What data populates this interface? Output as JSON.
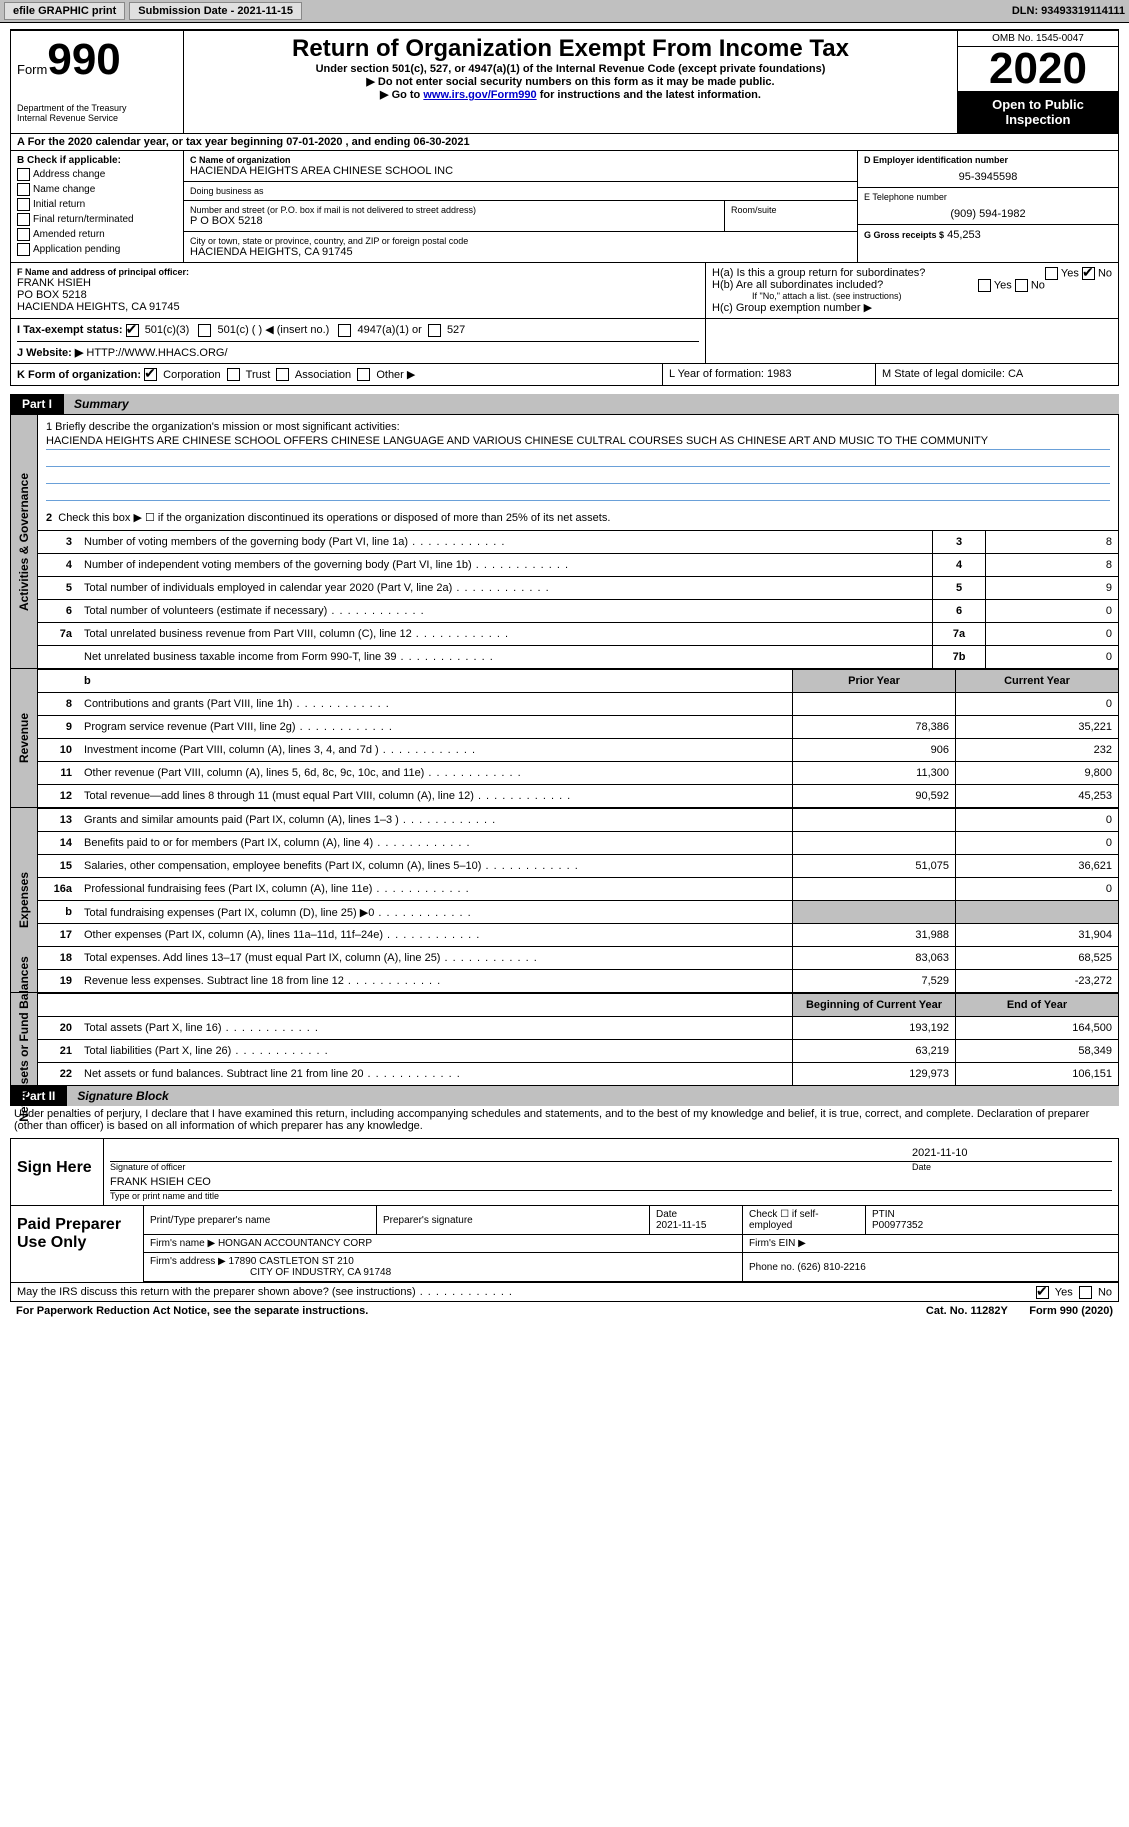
{
  "colors": {
    "header_gray": "#c0c0c0",
    "black": "#000000",
    "link": "#0000cc",
    "mission_line": "#6aa0d8"
  },
  "topbar": {
    "efile": "efile GRAPHIC print",
    "submission": "Submission Date - 2021-11-15",
    "dln": "DLN: 93493319114111"
  },
  "header": {
    "form_word": "Form",
    "form_num": "990",
    "dept1": "Department of the Treasury",
    "dept2": "Internal Revenue Service",
    "title": "Return of Organization Exempt From Income Tax",
    "subtitle": "Under section 501(c), 527, or 4947(a)(1) of the Internal Revenue Code (except private foundations)",
    "note1": "Do not enter social security numbers on this form as it may be made public.",
    "note2_pre": "Go to ",
    "note2_link": "www.irs.gov/Form990",
    "note2_post": " for instructions and the latest information.",
    "omb": "OMB No. 1545-0047",
    "year": "2020",
    "inspect": "Open to Public Inspection"
  },
  "row_a": "A For the 2020 calendar year, or tax year beginning 07-01-2020   , and ending 06-30-2021",
  "section_b": {
    "label": "B Check if applicable:",
    "items": [
      "Address change",
      "Name change",
      "Initial return",
      "Final return/terminated",
      "Amended return",
      "Application pending"
    ]
  },
  "section_c": {
    "name_lbl": "C Name of organization",
    "name": "HACIENDA HEIGHTS AREA CHINESE SCHOOL INC",
    "dba_lbl": "Doing business as",
    "addr_lbl": "Number and street (or P.O. box if mail is not delivered to street address)",
    "room_lbl": "Room/suite",
    "addr": "P O BOX 5218",
    "city_lbl": "City or town, state or province, country, and ZIP or foreign postal code",
    "city": "HACIENDA HEIGHTS, CA  91745"
  },
  "section_d": {
    "ein_lbl": "D Employer identification number",
    "ein": "95-3945598",
    "phone_lbl": "E Telephone number",
    "phone": "(909) 594-1982",
    "gross_lbl": "G Gross receipts $",
    "gross": "45,253"
  },
  "section_f": {
    "lbl": "F Name and address of principal officer:",
    "name": "FRANK HSIEH",
    "addr1": "PO BOX 5218",
    "addr2": "HACIENDA HEIGHTS, CA  91745"
  },
  "section_h": {
    "ha": "H(a)  Is this a group return for subordinates?",
    "hb": "H(b)  Are all subordinates included?",
    "hb_note": "If \"No,\" attach a list. (see instructions)",
    "hc": "H(c)  Group exemption number ▶",
    "yes": "Yes",
    "no": "No"
  },
  "tax_exempt": {
    "lbl": "I   Tax-exempt status:",
    "opt1": "501(c)(3)",
    "opt2": "501(c) (  ) ◀ (insert no.)",
    "opt3": "4947(a)(1) or",
    "opt4": "527"
  },
  "website": {
    "lbl": "J   Website: ▶",
    "val": "HTTP://WWW.HHACS.ORG/"
  },
  "k_row": {
    "k": "K Form of organization:",
    "corp": "Corporation",
    "trust": "Trust",
    "assoc": "Association",
    "other": "Other ▶",
    "l": "L Year of formation: 1983",
    "m": "M State of legal domicile: CA"
  },
  "part1": {
    "tab": "Part I",
    "title": "Summary"
  },
  "governance": {
    "vlabel": "Activities & Governance",
    "q1_lbl": "1   Briefly describe the organization's mission or most significant activities:",
    "mission": "HACIENDA HEIGHTS ARE CHINESE SCHOOL OFFERS CHINESE LANGUAGE AND VARIOUS CHINESE CULTRAL COURSES SUCH AS CHINESE ART AND MUSIC TO THE COMMUNITY",
    "q2": "Check this box ▶ ☐  if the organization discontinued its operations or disposed of more than 25% of its net assets.",
    "rows": [
      {
        "n": "3",
        "lbl": "Number of voting members of the governing body (Part VI, line 1a)",
        "box": "3",
        "val": "8"
      },
      {
        "n": "4",
        "lbl": "Number of independent voting members of the governing body (Part VI, line 1b)",
        "box": "4",
        "val": "8"
      },
      {
        "n": "5",
        "lbl": "Total number of individuals employed in calendar year 2020 (Part V, line 2a)",
        "box": "5",
        "val": "9"
      },
      {
        "n": "6",
        "lbl": "Total number of volunteers (estimate if necessary)",
        "box": "6",
        "val": "0"
      },
      {
        "n": "7a",
        "lbl": "Total unrelated business revenue from Part VIII, column (C), line 12",
        "box": "7a",
        "val": "0"
      },
      {
        "n": "",
        "lbl": "Net unrelated business taxable income from Form 990-T, line 39",
        "box": "7b",
        "val": "0"
      }
    ]
  },
  "revenue": {
    "vlabel": "Revenue",
    "hdr_b": "b",
    "hdr_py": "Prior Year",
    "hdr_cy": "Current Year",
    "rows": [
      {
        "n": "8",
        "lbl": "Contributions and grants (Part VIII, line 1h)",
        "py": "",
        "cy": "0"
      },
      {
        "n": "9",
        "lbl": "Program service revenue (Part VIII, line 2g)",
        "py": "78,386",
        "cy": "35,221"
      },
      {
        "n": "10",
        "lbl": "Investment income (Part VIII, column (A), lines 3, 4, and 7d )",
        "py": "906",
        "cy": "232"
      },
      {
        "n": "11",
        "lbl": "Other revenue (Part VIII, column (A), lines 5, 6d, 8c, 9c, 10c, and 11e)",
        "py": "11,300",
        "cy": "9,800"
      },
      {
        "n": "12",
        "lbl": "Total revenue—add lines 8 through 11 (must equal Part VIII, column (A), line 12)",
        "py": "90,592",
        "cy": "45,253"
      }
    ]
  },
  "expenses": {
    "vlabel": "Expenses",
    "rows": [
      {
        "n": "13",
        "lbl": "Grants and similar amounts paid (Part IX, column (A), lines 1–3 )",
        "py": "",
        "cy": "0"
      },
      {
        "n": "14",
        "lbl": "Benefits paid to or for members (Part IX, column (A), line 4)",
        "py": "",
        "cy": "0"
      },
      {
        "n": "15",
        "lbl": "Salaries, other compensation, employee benefits (Part IX, column (A), lines 5–10)",
        "py": "51,075",
        "cy": "36,621"
      },
      {
        "n": "16a",
        "lbl": "Professional fundraising fees (Part IX, column (A), line 11e)",
        "py": "",
        "cy": "0"
      },
      {
        "n": "b",
        "lbl": "Total fundraising expenses (Part IX, column (D), line 25) ▶0",
        "py": "shade",
        "cy": "shade"
      },
      {
        "n": "17",
        "lbl": "Other expenses (Part IX, column (A), lines 11a–11d, 11f–24e)",
        "py": "31,988",
        "cy": "31,904"
      },
      {
        "n": "18",
        "lbl": "Total expenses. Add lines 13–17 (must equal Part IX, column (A), line 25)",
        "py": "83,063",
        "cy": "68,525"
      },
      {
        "n": "19",
        "lbl": "Revenue less expenses. Subtract line 18 from line 12",
        "py": "7,529",
        "cy": "-23,272"
      }
    ]
  },
  "netassets": {
    "vlabel": "Net Assets or Fund Balances",
    "hdr_b": "Beginning of Current Year",
    "hdr_e": "End of Year",
    "rows": [
      {
        "n": "20",
        "lbl": "Total assets (Part X, line 16)",
        "py": "193,192",
        "cy": "164,500"
      },
      {
        "n": "21",
        "lbl": "Total liabilities (Part X, line 26)",
        "py": "63,219",
        "cy": "58,349"
      },
      {
        "n": "22",
        "lbl": "Net assets or fund balances. Subtract line 21 from line 20",
        "py": "129,973",
        "cy": "106,151"
      }
    ]
  },
  "part2": {
    "tab": "Part II",
    "title": "Signature Block",
    "penalty": "Under penalties of perjury, I declare that I have examined this return, including accompanying schedules and statements, and to the best of my knowledge and belief, it is true, correct, and complete. Declaration of preparer (other than officer) is based on all information of which preparer has any knowledge."
  },
  "sign": {
    "here": "Sign Here",
    "sig_lbl": "Signature of officer",
    "date": "2021-11-10",
    "date_lbl": "Date",
    "name": "FRANK HSIEH  CEO",
    "name_lbl": "Type or print name and title"
  },
  "preparer": {
    "lbl": "Paid Preparer Use Only",
    "h1": "Print/Type preparer's name",
    "h2": "Preparer's signature",
    "h3": "Date",
    "h3v": "2021-11-15",
    "h4": "Check ☐ if self-employed",
    "h5": "PTIN",
    "h5v": "P00977352",
    "firm_lbl": "Firm's name    ▶",
    "firm": "HONGAN ACCOUNTANCY CORP",
    "ein_lbl": "Firm's EIN ▶",
    "addr_lbl": "Firm's address ▶",
    "addr1": "17890 CASTLETON ST 210",
    "addr2": "CITY OF INDUSTRY, CA  91748",
    "phone_lbl": "Phone no.",
    "phone": "(626) 810-2216"
  },
  "discuss": {
    "q": "May the IRS discuss this return with the preparer shown above? (see instructions)",
    "yes": "Yes",
    "no": "No"
  },
  "footer": {
    "left": "For Paperwork Reduction Act Notice, see the separate instructions.",
    "mid": "Cat. No. 11282Y",
    "right": "Form 990 (2020)"
  }
}
